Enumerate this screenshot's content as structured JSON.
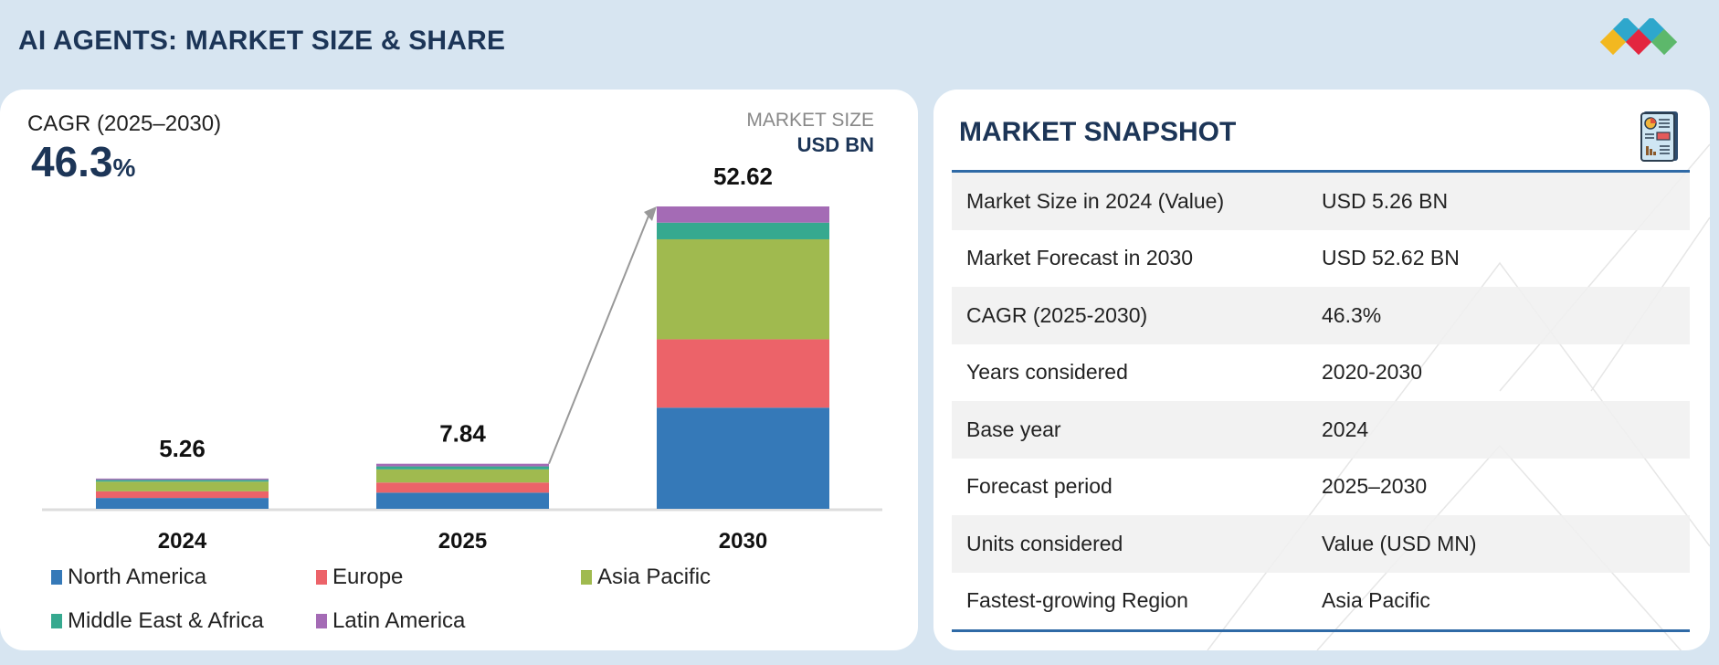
{
  "header": {
    "title": "AI AGENTS: MARKET SIZE & SHARE",
    "logo": "marketsandmarkets-logo"
  },
  "left_panel": {
    "cagr_label": "CAGR (2025–2030)",
    "cagr_value": "46.3",
    "cagr_unit": "%",
    "market_size_label": "MARKET SIZE",
    "market_size_unit": "USD BN"
  },
  "chart_data": {
    "type": "bar",
    "stacked": true,
    "title": "",
    "xlabel": "",
    "ylabel": "USD BN",
    "categories": [
      "2024",
      "2025",
      "2030"
    ],
    "totals": [
      "5.26",
      "7.84",
      "52.62"
    ],
    "ylim": [
      0,
      52.62
    ],
    "grid": false,
    "legend_position": "bottom",
    "series": [
      {
        "name": "North America",
        "color": "#3579b8",
        "values": [
          1.89,
          2.81,
          17.6
        ]
      },
      {
        "name": "Europe",
        "color": "#ec6369",
        "values": [
          1.15,
          1.76,
          11.9
        ]
      },
      {
        "name": "Asia Pacific",
        "color": "#a0ba4f",
        "values": [
          1.69,
          2.29,
          17.4
        ]
      },
      {
        "name": "Middle East & Africa",
        "color": "#36a98f",
        "values": [
          0.3,
          0.52,
          2.9
        ]
      },
      {
        "name": "Latin America",
        "color": "#a46bb5",
        "values": [
          0.23,
          0.46,
          2.82
        ]
      }
    ]
  },
  "snapshot": {
    "title": "MARKET SNAPSHOT",
    "icon": "report-icon",
    "rows": [
      {
        "label": "Market Size in 2024 (Value)",
        "value": "USD 5.26 BN"
      },
      {
        "label": "Market Forecast in 2030",
        "value": "USD 52.62 BN"
      },
      {
        "label": "CAGR (2025-2030)",
        "value": "46.3%"
      },
      {
        "label": "Years considered",
        "value": "2020-2030"
      },
      {
        "label": "Base year",
        "value": "2024"
      },
      {
        "label": "Forecast period",
        "value": "2025–2030"
      },
      {
        "label": "Units considered",
        "value": "Value (USD MN)"
      },
      {
        "label": "Fastest-growing Region",
        "value": "Asia Pacific"
      }
    ]
  }
}
